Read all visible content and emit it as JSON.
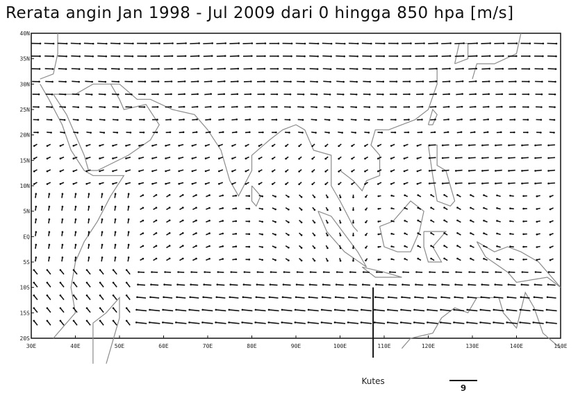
{
  "title": "Rerata angin Jan 1998 - Jul 2009 dari 0 hingga 850 hpa [m/s]",
  "lat_labels": [
    "40N",
    "35N",
    "30N",
    "25N",
    "20N",
    "15N",
    "10N",
    "5N",
    "EQ",
    "5S",
    "10S",
    "15S",
    "20S"
  ],
  "lon_labels": [
    "30E",
    "40E",
    "50E",
    "60E",
    "70E",
    "80E",
    "90E",
    "100E",
    "110E",
    "120E",
    "130E",
    "140E",
    "150E"
  ],
  "marker_label": "Kutes",
  "reference_vector_label": "9",
  "reference_vector_ms": 9,
  "marker_lon": 107.5,
  "lat_range": [
    -20,
    40
  ],
  "lon_range": [
    30,
    150
  ],
  "colors": {
    "ink": "#111111",
    "coast": "#8a8a8a",
    "frame": "#111111"
  }
}
